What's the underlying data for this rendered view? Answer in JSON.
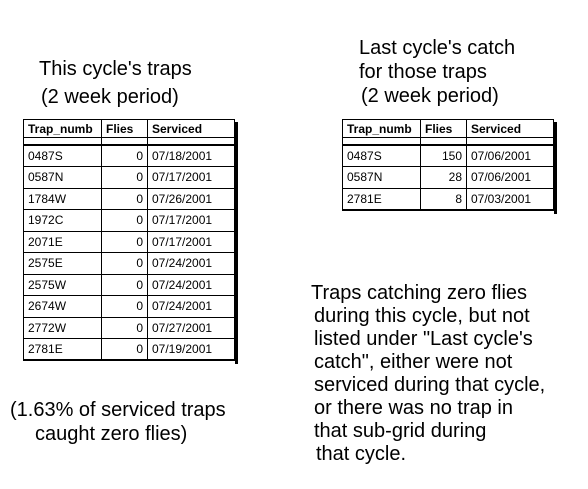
{
  "left_caption": [
    "This cycle's traps",
    "(2 week period)"
  ],
  "right_caption": [
    "Last cycle's catch",
    "for those traps",
    "(2 week period)"
  ],
  "columns": [
    "Trap_numb",
    "Flies",
    "Serviced"
  ],
  "this_cycle_rows": [
    {
      "trap": "0487S",
      "flies": "0",
      "serviced": "07/18/2001"
    },
    {
      "trap": "0587N",
      "flies": "0",
      "serviced": "07/17/2001"
    },
    {
      "trap": "1784W",
      "flies": "0",
      "serviced": "07/26/2001"
    },
    {
      "trap": "1972C",
      "flies": "0",
      "serviced": "07/17/2001"
    },
    {
      "trap": "2071E",
      "flies": "0",
      "serviced": "07/17/2001"
    },
    {
      "trap": "2575E",
      "flies": "0",
      "serviced": "07/24/2001"
    },
    {
      "trap": "2575W",
      "flies": "0",
      "serviced": "07/24/2001"
    },
    {
      "trap": "2674W",
      "flies": "0",
      "serviced": "07/24/2001"
    },
    {
      "trap": "2772W",
      "flies": "0",
      "serviced": "07/27/2001"
    },
    {
      "trap": "2781E",
      "flies": "0",
      "serviced": "07/19/2001"
    }
  ],
  "last_cycle_rows": [
    {
      "trap": "0487S",
      "flies": "150",
      "serviced": "07/06/2001"
    },
    {
      "trap": "0587N",
      "flies": "28",
      "serviced": "07/06/2001"
    },
    {
      "trap": "2781E",
      "flies": "8",
      "serviced": "07/03/2001"
    }
  ],
  "percent_note": [
    "(1.63% of serviced traps",
    "caught zero flies)"
  ],
  "explanation": [
    "Traps catching zero flies",
    "during this cycle, but not",
    "listed under \"Last cycle's",
    "catch\", either were not",
    "serviced during that cycle,",
    "or there was no trap in",
    "that sub-grid during",
    "that cycle."
  ]
}
